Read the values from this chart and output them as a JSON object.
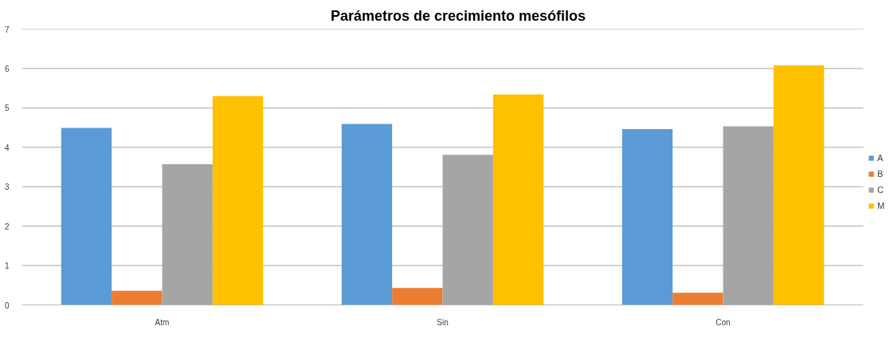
{
  "chart_data": {
    "type": "bar",
    "title": "Parámetros de crecimiento mesófilos",
    "categories": [
      "Atm",
      "Sin",
      "Con"
    ],
    "series": [
      {
        "name": "A",
        "color": "#5b9bd5",
        "values": [
          4.49,
          4.59,
          4.46
        ]
      },
      {
        "name": "B",
        "color": "#ed7d31",
        "values": [
          0.36,
          0.43,
          0.31
        ]
      },
      {
        "name": "C",
        "color": "#a5a5a5",
        "values": [
          3.57,
          3.81,
          4.53
        ]
      },
      {
        "name": "M",
        "color": "#ffc000",
        "values": [
          5.3,
          5.34,
          6.08
        ]
      }
    ],
    "ylim": [
      0,
      7
    ],
    "yticks": [
      0,
      1,
      2,
      3,
      4,
      5,
      6,
      7
    ],
    "grid": "y",
    "legend": "right"
  }
}
